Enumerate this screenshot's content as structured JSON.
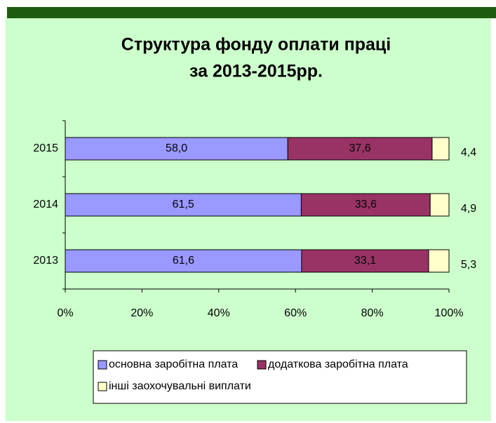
{
  "chart_data": {
    "type": "stacked_bar_horizontal_100",
    "title": [
      "Структура фонду оплати праці",
      "за  2013-2015рр."
    ],
    "categories": [
      "2015",
      "2014",
      "2013"
    ],
    "series": [
      {
        "name": "основна заробітна плата",
        "color": "#9999ff",
        "values": [
          58.0,
          61.5,
          61.6
        ],
        "value_labels": [
          "58,0",
          "61,5",
          "61,6"
        ]
      },
      {
        "name": "додаткова заробітна плата",
        "color": "#993366",
        "values": [
          37.6,
          33.6,
          33.1
        ],
        "value_labels": [
          "37,6",
          "33,6",
          "33,1"
        ]
      },
      {
        "name": "інші заохочувальні виплати",
        "color": "#ffffcc",
        "values": [
          4.4,
          4.9,
          5.3
        ],
        "value_labels": [
          "4,4",
          "4,9",
          "5,3"
        ]
      }
    ],
    "xlim": [
      0,
      100
    ],
    "xticks": [
      {
        "value": 0,
        "label": "0%"
      },
      {
        "value": 20,
        "label": "20%"
      },
      {
        "value": 40,
        "label": "40%"
      },
      {
        "value": 60,
        "label": "60%"
      },
      {
        "value": 80,
        "label": "80%"
      },
      {
        "value": 100,
        "label": "100%"
      }
    ],
    "legend": "bottom"
  }
}
